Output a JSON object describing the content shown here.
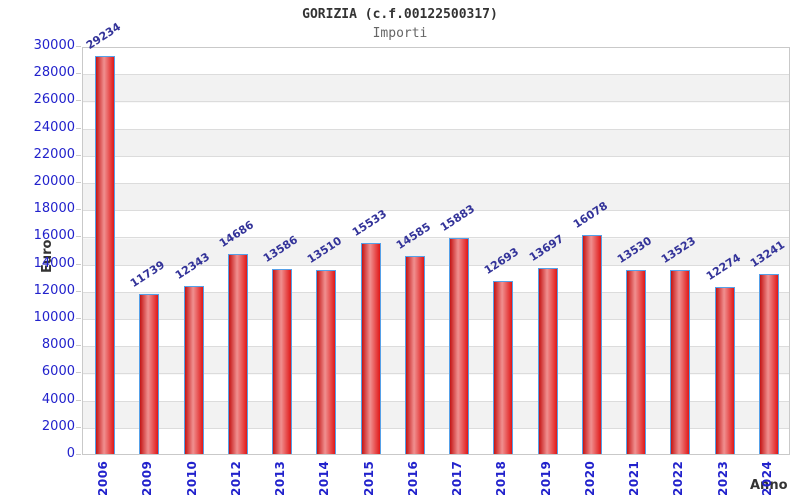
{
  "header": {
    "title": "GORIZIA (c.f.00122500317)",
    "subtitle": "Importi"
  },
  "chart_data": {
    "type": "bar",
    "title": "GORIZIA (c.f.00122500317)",
    "subtitle": "Importi",
    "xlabel": "Anno",
    "ylabel": "Euro",
    "categories": [
      "2006",
      "2009",
      "2010",
      "2012",
      "2013",
      "2014",
      "2015",
      "2016",
      "2017",
      "2018",
      "2019",
      "2020",
      "2021",
      "2022",
      "2023",
      "2024"
    ],
    "values": [
      29234,
      11739,
      12343,
      14686,
      13586,
      13510,
      15533,
      14585,
      15883,
      12693,
      13697,
      16078,
      13530,
      13523,
      12274,
      13241
    ],
    "ylim": [
      0,
      30000
    ],
    "y_tick_step": 2000,
    "grid": "horizontal gridlines with alternating white/gray bands",
    "legend": "none",
    "colors": {
      "bar_fill_dark": "#c41414",
      "bar_fill_light": "#f09090",
      "bar_border": "#55a0e8",
      "axis_label": "#2222cc",
      "value_label": "#333399",
      "band_gray": "#f2f2f2",
      "gridline": "#dcdcdc",
      "title_text": "#333333",
      "subtitle_text": "#666666"
    }
  }
}
